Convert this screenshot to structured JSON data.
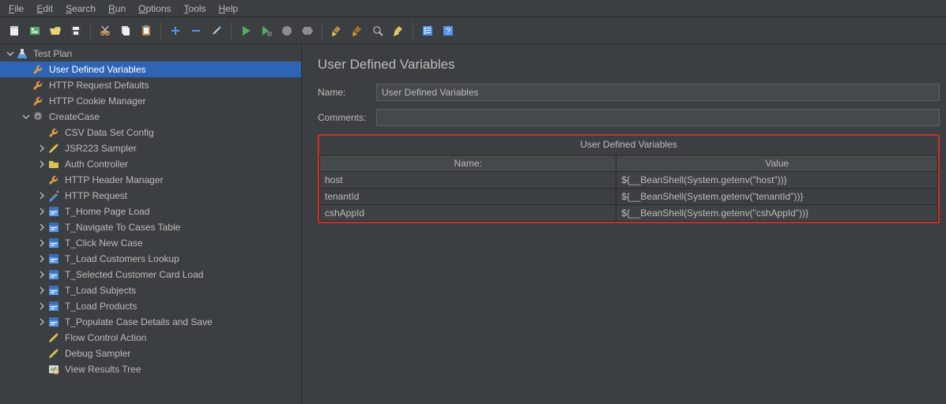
{
  "menubar": {
    "items": [
      {
        "label": "File",
        "accel": 0
      },
      {
        "label": "Edit",
        "accel": 0
      },
      {
        "label": "Search",
        "accel": 0
      },
      {
        "label": "Run",
        "accel": 0
      },
      {
        "label": "Options",
        "accel": 0
      },
      {
        "label": "Tools",
        "accel": 0
      },
      {
        "label": "Help",
        "accel": 0
      }
    ]
  },
  "toolbar": {
    "buttons": [
      "new-icon",
      "templates-icon",
      "open-icon",
      "save-icon",
      "sep",
      "cut-icon",
      "copy-icon",
      "paste-icon",
      "sep",
      "plus-icon",
      "minus-icon",
      "wand-icon",
      "sep",
      "run-icon",
      "run-no-timers-icon",
      "stop-icon",
      "shutdown-icon",
      "sep",
      "clear-search-icon",
      "clear-all-icon",
      "search-icon",
      "function-icon",
      "sep",
      "help-tree-icon",
      "question-icon"
    ]
  },
  "tree": {
    "nodes": [
      {
        "id": "test-plan",
        "label": "Test Plan",
        "depth": 0,
        "twisty": "down",
        "icon": "beaker",
        "selected": false
      },
      {
        "id": "udv",
        "label": "User Defined Variables",
        "depth": 1,
        "twisty": "none",
        "icon": "wrench",
        "selected": true
      },
      {
        "id": "http-defaults",
        "label": "HTTP Request Defaults",
        "depth": 1,
        "twisty": "none",
        "icon": "wrench",
        "selected": false
      },
      {
        "id": "cookie-mgr",
        "label": "HTTP Cookie Manager",
        "depth": 1,
        "twisty": "none",
        "icon": "wrench",
        "selected": false
      },
      {
        "id": "create-case",
        "label": "CreateCase",
        "depth": 1,
        "twisty": "down",
        "icon": "gear",
        "selected": false
      },
      {
        "id": "csv",
        "label": "CSV Data Set Config",
        "depth": 2,
        "twisty": "none",
        "icon": "wrench",
        "selected": false
      },
      {
        "id": "jsr223",
        "label": "JSR223 Sampler",
        "depth": 2,
        "twisty": "right",
        "icon": "pencil",
        "selected": false
      },
      {
        "id": "auth",
        "label": "Auth Controller",
        "depth": 2,
        "twisty": "right",
        "icon": "folder",
        "selected": false
      },
      {
        "id": "header-mgr",
        "label": "HTTP Header Manager",
        "depth": 2,
        "twisty": "none",
        "icon": "wrench",
        "selected": false
      },
      {
        "id": "http-req",
        "label": "HTTP Request",
        "depth": 2,
        "twisty": "right",
        "icon": "pipette",
        "selected": false
      },
      {
        "id": "t1",
        "label": "T_Home Page Load",
        "depth": 2,
        "twisty": "right",
        "icon": "txn",
        "selected": false
      },
      {
        "id": "t2",
        "label": "T_Navigate To Cases Table",
        "depth": 2,
        "twisty": "right",
        "icon": "txn",
        "selected": false
      },
      {
        "id": "t3",
        "label": "T_Click New Case",
        "depth": 2,
        "twisty": "right",
        "icon": "txn",
        "selected": false
      },
      {
        "id": "t4",
        "label": "T_Load Customers Lookup",
        "depth": 2,
        "twisty": "right",
        "icon": "txn",
        "selected": false
      },
      {
        "id": "t5",
        "label": "T_Selected Customer Card Load",
        "depth": 2,
        "twisty": "right",
        "icon": "txn",
        "selected": false
      },
      {
        "id": "t6",
        "label": "T_Load Subjects",
        "depth": 2,
        "twisty": "right",
        "icon": "txn",
        "selected": false
      },
      {
        "id": "t7",
        "label": "T_Load Products",
        "depth": 2,
        "twisty": "right",
        "icon": "txn",
        "selected": false
      },
      {
        "id": "t8",
        "label": "T_Populate Case Details and Save",
        "depth": 2,
        "twisty": "right",
        "icon": "txn",
        "selected": false
      },
      {
        "id": "flow",
        "label": "Flow Control Action",
        "depth": 2,
        "twisty": "none",
        "icon": "pencil",
        "selected": false
      },
      {
        "id": "debug",
        "label": "Debug Sampler",
        "depth": 2,
        "twisty": "none",
        "icon": "pencil",
        "selected": false
      },
      {
        "id": "results",
        "label": "View Results Tree",
        "depth": 2,
        "twisty": "none",
        "icon": "results",
        "selected": false
      }
    ]
  },
  "detail": {
    "title": "User Defined Variables",
    "nameLabel": "Name:",
    "nameValue": "User Defined Variables",
    "commentsLabel": "Comments:",
    "commentsValue": "",
    "gridCaption": "User Defined Variables",
    "gridColumns": [
      "Name:",
      "Value"
    ],
    "gridRows": [
      {
        "name": "host",
        "value": "${__BeanShell(System.getenv(\"host\"))}"
      },
      {
        "name": "tenantId",
        "value": "${__BeanShell(System.getenv(\"tenantId\"))}"
      },
      {
        "name": "cshAppId",
        "value": "${__BeanShell(System.getenv(\"cshAppId\"))}"
      }
    ],
    "gridColWidths": [
      "48%",
      "52%"
    ]
  },
  "colors": {
    "bg": "#3c3f41",
    "panelBorder": "#2b2b2b",
    "text": "#bbbbbb",
    "selection": "#2f64b4",
    "inputBg": "#45494a",
    "inputBorder": "#5e6060",
    "highlightRect": "#d02b2b",
    "green": "#59a869",
    "orange": "#e2994a",
    "blue": "#5394ec",
    "yellow": "#d9c353",
    "gray": "#8c8c8c"
  }
}
